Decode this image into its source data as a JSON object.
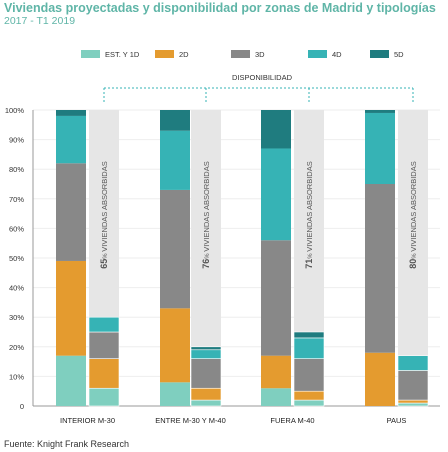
{
  "title": "Viviendas proyectadas y disponibilidad por zonas de Madrid y tipologías",
  "subtitle": "2017 - T1 2019",
  "source": "Fuente: Knight Frank Research",
  "chart_data": {
    "type": "bar",
    "stacked": true,
    "categories": [
      "INTERIOR M-30",
      "ENTRE M-30 Y M-40",
      "FUERA M-40",
      "PAUS"
    ],
    "y_ticks": [
      "0",
      "10%",
      "20%",
      "30%",
      "40%",
      "50%",
      "60%",
      "70%",
      "80%",
      "90%",
      "100%"
    ],
    "ylim": [
      0,
      100
    ],
    "legend_position": "top",
    "availability_label": "DISPONIBILIDAD",
    "absorbed_label": "VIVIENDAS ABSORBIDAS",
    "absorbed_unit": "%",
    "series": [
      {
        "name": "EST. Y 1D",
        "color": "#7fcfbf",
        "projected": [
          17,
          8,
          6,
          0
        ],
        "available": [
          6,
          2,
          2,
          1
        ]
      },
      {
        "name": "2D",
        "color": "#e49b2f",
        "projected": [
          32,
          25,
          11,
          18
        ],
        "available": [
          10,
          4,
          3,
          1
        ]
      },
      {
        "name": "3D",
        "color": "#888888",
        "projected": [
          33,
          40,
          39,
          57
        ],
        "available": [
          9,
          10,
          11,
          10
        ]
      },
      {
        "name": "4D",
        "color": "#36b3b5",
        "projected": [
          16,
          20,
          31,
          24
        ],
        "available": [
          5,
          3,
          7,
          5
        ]
      },
      {
        "name": "5D",
        "color": "#1f7c7f",
        "projected": [
          2,
          7,
          13,
          1
        ],
        "available": [
          0,
          1,
          2,
          0
        ]
      }
    ],
    "absorbed": [
      {
        "value": "65",
        "bar_value": 100
      },
      {
        "value": "76",
        "bar_value": 100
      },
      {
        "value": "71",
        "bar_value": 100
      },
      {
        "value": "80",
        "bar_value": 100
      }
    ]
  }
}
